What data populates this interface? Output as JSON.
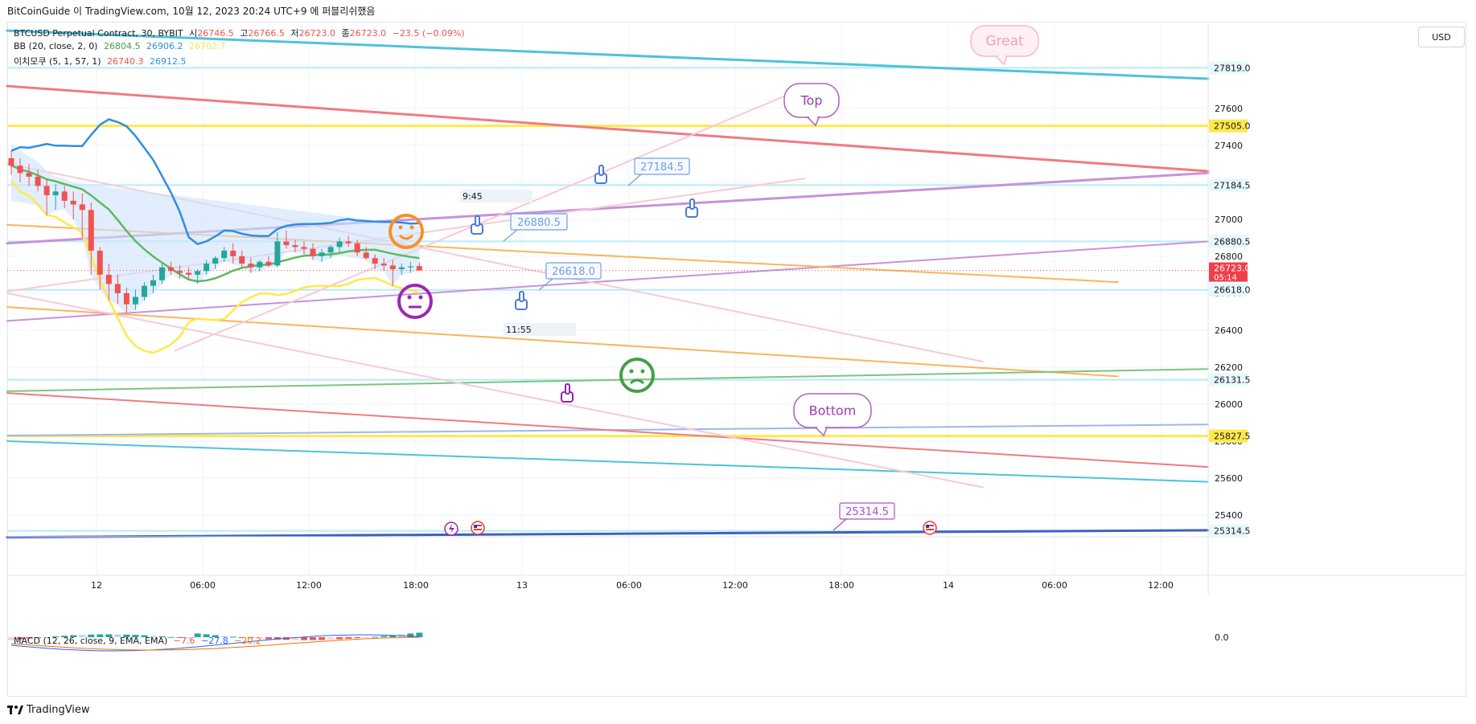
{
  "publisher_text": "BitCoinGuide 이 TradingView.com, 10월 12, 2023 20:24 UTC+9 에 퍼블리쉬했음",
  "footer_logo": "TradingView",
  "currency_button": "USD",
  "legend": {
    "symbol": "BTCUSD Perpetual Contract, 30, BYBIT",
    "open_label": "시",
    "open": "26746.5",
    "high_label": "고",
    "high": "26766.5",
    "low_label": "저",
    "low": "26723.0",
    "close_label": "종",
    "close": "26723.0",
    "change": "−23.5 (−0.09%)",
    "bb_label": "BB (20, close, 2, 0)",
    "bb_basis": "26804.5",
    "bb_upper": "26906.2",
    "bb_lower": "26702.7",
    "ichimoku_label": "이치모쿠 (5, 1, 57, 1)",
    "ichimoku_a": "26740.3",
    "ichimoku_b": "26912.5",
    "macd_label": "MACD (12, 26, close, 9, EMA, EMA)",
    "macd_hist": "−7.6",
    "macd_line": "−27.8",
    "macd_signal": "−20.2"
  },
  "colors": {
    "up": "#26a69a",
    "down": "#ef5350",
    "teal": "#4dc3d9",
    "red": "#f07b80",
    "yellow": "#ffe94a",
    "purple": "#c792d9",
    "orange": "#f9b55c",
    "pink": "#f8c9d8",
    "green": "#7cc480",
    "blue": "#2f8ee0",
    "light_blue": "#9cb7f0",
    "level": "#b8ecf5"
  },
  "chart_data": {
    "type": "candlestick",
    "symbol": "BTCUSD Perpetual Contract",
    "interval": "30",
    "exchange": "BYBIT",
    "y_axis": {
      "min": 25200,
      "max": 27950,
      "ticks": [
        27600,
        27400,
        27200,
        27000,
        26800,
        26600,
        26400,
        26200,
        26000,
        25800,
        25600,
        25400
      ]
    },
    "x_axis": {
      "ticks": [
        "12",
        "06:00",
        "12:00",
        "18:00",
        "13",
        "06:00",
        "12:00",
        "18:00",
        "14",
        "06:00",
        "12:00"
      ]
    },
    "price_levels": [
      27819.0,
      27505.0,
      27184.5,
      26880.5,
      26618.0,
      26131.5,
      25827.5,
      25314.5
    ],
    "last_price": {
      "value": "26723.0",
      "countdown": "05:14"
    },
    "macd_zero_label": "0.0",
    "time_labels": [
      "9:45",
      "11:55"
    ],
    "annotations": [
      {
        "text": "Great",
        "kind": "callout"
      },
      {
        "text": "Top",
        "kind": "callout"
      },
      {
        "text": "Bottom",
        "kind": "callout"
      },
      {
        "text": "27184.5",
        "kind": "price-callout"
      },
      {
        "text": "26880.5",
        "kind": "price-callout"
      },
      {
        "text": "26618.0",
        "kind": "price-callout"
      },
      {
        "text": "25314.5",
        "kind": "price-callout"
      }
    ],
    "candles": [
      [
        27330,
        27370,
        27240,
        27290
      ],
      [
        27290,
        27330,
        27200,
        27250
      ],
      [
        27250,
        27300,
        27180,
        27230
      ],
      [
        27230,
        27270,
        27150,
        27180
      ],
      [
        27180,
        27220,
        27020,
        27130
      ],
      [
        27130,
        27190,
        27050,
        27150
      ],
      [
        27150,
        27180,
        27060,
        27100
      ],
      [
        27100,
        27150,
        27000,
        27080
      ],
      [
        27080,
        27140,
        26900,
        27050
      ],
      [
        27050,
        27090,
        26700,
        26830
      ],
      [
        26830,
        26850,
        26620,
        26700
      ],
      [
        26700,
        26760,
        26560,
        26650
      ],
      [
        26650,
        26700,
        26540,
        26600
      ],
      [
        26600,
        26630,
        26490,
        26540
      ],
      [
        26540,
        26620,
        26510,
        26580
      ],
      [
        26580,
        26660,
        26560,
        26640
      ],
      [
        26640,
        26700,
        26600,
        26670
      ],
      [
        26670,
        26760,
        26650,
        26740
      ],
      [
        26740,
        26770,
        26700,
        26720
      ],
      [
        26720,
        26750,
        26680,
        26710
      ],
      [
        26710,
        26740,
        26670,
        26700
      ],
      [
        26700,
        26730,
        26650,
        26720
      ],
      [
        26720,
        26780,
        26700,
        26760
      ],
      [
        26760,
        26800,
        26730,
        26790
      ],
      [
        26790,
        26850,
        26770,
        26830
      ],
      [
        26830,
        26870,
        26760,
        26800
      ],
      [
        26800,
        26830,
        26740,
        26760
      ],
      [
        26760,
        26790,
        26710,
        26740
      ],
      [
        26740,
        26780,
        26720,
        26770
      ],
      [
        26770,
        26800,
        26740,
        26750
      ],
      [
        26750,
        26930,
        26740,
        26880
      ],
      [
        26880,
        26940,
        26840,
        26860
      ],
      [
        26860,
        26890,
        26820,
        26850
      ],
      [
        26850,
        26880,
        26810,
        26840
      ],
      [
        26840,
        26870,
        26780,
        26800
      ],
      [
        26800,
        26840,
        26770,
        26820
      ],
      [
        26820,
        26860,
        26790,
        26850
      ],
      [
        26850,
        26900,
        26820,
        26880
      ],
      [
        26880,
        26910,
        26850,
        26870
      ],
      [
        26870,
        26890,
        26800,
        26820
      ],
      [
        26820,
        26850,
        26780,
        26790
      ],
      [
        26790,
        26810,
        26730,
        26760
      ],
      [
        26760,
        26790,
        26720,
        26750
      ],
      [
        26750,
        26780,
        26640,
        26730
      ],
      [
        26730,
        26760,
        26700,
        26740
      ],
      [
        26740,
        26770,
        26710,
        26745
      ],
      [
        26746.5,
        26766.5,
        26723,
        26723
      ]
    ]
  }
}
